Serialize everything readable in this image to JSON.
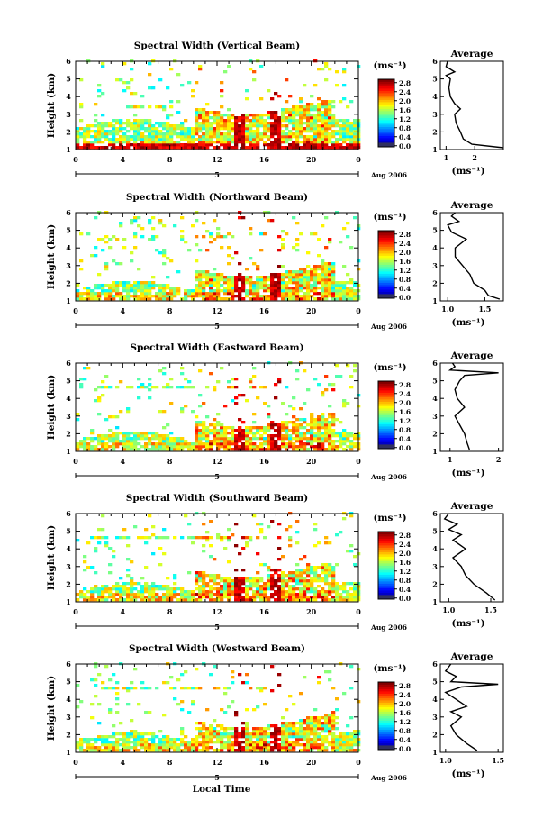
{
  "chart_data": [
    {
      "type": "heatmap",
      "title": "Spectral Width (Vertical Beam)",
      "ylabel": "Height (km)",
      "xlabel": "",
      "x_ticks": [
        "0",
        "4",
        "8",
        "12",
        "16",
        "20",
        "0"
      ],
      "y_ticks": [
        "1",
        "2",
        "3",
        "4",
        "5",
        "6"
      ],
      "xlim": [
        0,
        24
      ],
      "ylim": [
        1,
        6
      ],
      "date_day": "5",
      "date_label": "Aug 2006",
      "colorbar": {
        "unit": "(ms⁻¹)",
        "ticks": [
          "0.0",
          "0.4",
          "0.8",
          "1.2",
          "1.6",
          "2.0",
          "2.4",
          "2.8"
        ],
        "range": [
          0,
          3
        ]
      },
      "average": {
        "title": "Average",
        "xlabel": "(ms⁻¹)",
        "x_ticks": [
          "1",
          "2"
        ],
        "xlim": [
          0.8,
          3.0
        ],
        "profile_heights": [
          1.1,
          1.3,
          1.6,
          2.0,
          2.5,
          3.0,
          3.3,
          3.6,
          4.0,
          4.5,
          5.0,
          5.2,
          5.4,
          5.7,
          6.0
        ],
        "profile_values": [
          3.0,
          1.9,
          1.6,
          1.5,
          1.35,
          1.3,
          1.5,
          1.3,
          1.15,
          1.1,
          1.15,
          1.0,
          1.3,
          1.0,
          1.05
        ]
      }
    },
    {
      "type": "heatmap",
      "title": "Spectral Width (Northward Beam)",
      "ylabel": "Height (km)",
      "xlabel": "",
      "x_ticks": [
        "0",
        "4",
        "8",
        "12",
        "16",
        "20",
        "0"
      ],
      "y_ticks": [
        "1",
        "2",
        "3",
        "4",
        "5",
        "6"
      ],
      "xlim": [
        0,
        24
      ],
      "ylim": [
        1,
        6
      ],
      "date_day": "5",
      "date_label": "Aug 2006",
      "colorbar": {
        "unit": "(ms⁻¹)",
        "ticks": [
          "0.0",
          "0.4",
          "0.8",
          "1.2",
          "1.6",
          "2.0",
          "2.4",
          "2.8"
        ],
        "range": [
          0,
          3
        ]
      },
      "average": {
        "title": "Average",
        "xlabel": "(ms⁻¹)",
        "x_ticks": [
          "1.0",
          "1.5"
        ],
        "xlim": [
          0.9,
          1.75
        ],
        "profile_heights": [
          1.1,
          1.3,
          1.6,
          2.0,
          2.5,
          3.0,
          3.5,
          4.0,
          4.5,
          4.9,
          5.3,
          5.5,
          5.8,
          6.0
        ],
        "profile_values": [
          1.7,
          1.55,
          1.5,
          1.35,
          1.3,
          1.2,
          1.1,
          1.1,
          1.25,
          1.05,
          1.0,
          1.15,
          1.05,
          1.1
        ]
      }
    },
    {
      "type": "heatmap",
      "title": "Spectral Width (Eastward Beam)",
      "ylabel": "Height (km)",
      "xlabel": "",
      "x_ticks": [
        "0",
        "4",
        "8",
        "12",
        "16",
        "20",
        "0"
      ],
      "y_ticks": [
        "1",
        "2",
        "3",
        "4",
        "5",
        "6"
      ],
      "xlim": [
        0,
        24
      ],
      "ylim": [
        1,
        6
      ],
      "date_day": "5",
      "date_label": "Aug 2006",
      "colorbar": {
        "unit": "(ms⁻¹)",
        "ticks": [
          "0.0",
          "0.4",
          "0.8",
          "1.2",
          "1.6",
          "2.0",
          "2.4",
          "2.8"
        ],
        "range": [
          0,
          3
        ]
      },
      "average": {
        "title": "Average",
        "xlabel": "(ms⁻¹)",
        "x_ticks": [
          "1",
          "2"
        ],
        "xlim": [
          0.8,
          2.1
        ],
        "profile_heights": [
          1.1,
          1.5,
          2.0,
          2.5,
          3.0,
          3.5,
          4.0,
          4.5,
          5.0,
          5.3,
          5.45,
          5.6,
          5.8,
          6.0
        ],
        "profile_values": [
          1.4,
          1.35,
          1.3,
          1.2,
          1.1,
          1.3,
          1.15,
          1.1,
          1.2,
          1.3,
          2.0,
          1.0,
          1.1,
          1.05
        ]
      }
    },
    {
      "type": "heatmap",
      "title": "Spectral Width (Southward Beam)",
      "ylabel": "Height (km)",
      "xlabel": "",
      "x_ticks": [
        "0",
        "4",
        "8",
        "12",
        "16",
        "20",
        "0"
      ],
      "y_ticks": [
        "1",
        "2",
        "3",
        "4",
        "5",
        "6"
      ],
      "xlim": [
        0,
        24
      ],
      "ylim": [
        1,
        6
      ],
      "date_day": "5",
      "date_label": "Aug 2006",
      "colorbar": {
        "unit": "(ms⁻¹)",
        "ticks": [
          "0.0",
          "0.4",
          "0.8",
          "1.2",
          "1.6",
          "2.0",
          "2.4",
          "2.8"
        ],
        "range": [
          0,
          3
        ]
      },
      "average": {
        "title": "Average",
        "xlabel": "(ms⁻¹)",
        "x_ticks": [
          "1.0",
          "1.5"
        ],
        "xlim": [
          0.9,
          1.65
        ],
        "profile_heights": [
          1.1,
          1.5,
          2.0,
          2.5,
          3.0,
          3.5,
          4.0,
          4.5,
          4.8,
          5.1,
          5.4,
          5.7,
          6.0
        ],
        "profile_values": [
          1.55,
          1.45,
          1.3,
          1.2,
          1.15,
          1.05,
          1.2,
          1.05,
          1.15,
          1.0,
          1.1,
          0.95,
          1.0
        ]
      }
    },
    {
      "type": "heatmap",
      "title": "Spectral Width (Westward Beam)",
      "ylabel": "Height (km)",
      "xlabel": "Local Time",
      "x_ticks": [
        "0",
        "4",
        "8",
        "12",
        "16",
        "20",
        "0"
      ],
      "y_ticks": [
        "1",
        "2",
        "3",
        "4",
        "5",
        "6"
      ],
      "xlim": [
        0,
        24
      ],
      "ylim": [
        1,
        6
      ],
      "date_day": "5",
      "date_label": "Aug 2006",
      "colorbar": {
        "unit": "(ms⁻¹)",
        "ticks": [
          "0.0",
          "0.4",
          "0.8",
          "1.2",
          "1.6",
          "2.0",
          "2.4",
          "2.8"
        ],
        "range": [
          0,
          3
        ]
      },
      "average": {
        "title": "Average",
        "xlabel": "(ms⁻¹)",
        "x_ticks": [
          "1.0",
          "1.5"
        ],
        "xlim": [
          0.95,
          1.55
        ],
        "profile_heights": [
          1.1,
          1.5,
          2.0,
          2.5,
          3.0,
          3.3,
          3.6,
          4.0,
          4.4,
          4.7,
          4.85,
          5.0,
          5.3,
          5.6,
          6.0
        ],
        "profile_values": [
          1.3,
          1.2,
          1.1,
          1.05,
          1.15,
          1.05,
          1.2,
          1.1,
          1.0,
          1.15,
          1.5,
          1.05,
          1.1,
          1.0,
          1.05
        ]
      }
    }
  ]
}
